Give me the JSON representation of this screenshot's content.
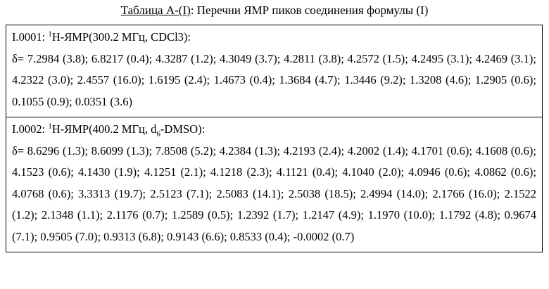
{
  "caption": {
    "label": "Таблица А-(I)",
    "text": ": Перечни ЯМР пиков соединения формулы (I)"
  },
  "rows": [
    {
      "id": "I.0001",
      "sep": ": ",
      "sup": "1",
      "nucleus": "H-ЯМР(300.2 МГц, CDCl3):",
      "shifts": "δ= 7.2984 (3.8); 6.8217 (0.4); 4.3287 (1.2); 4.3049 (3.7); 4.2811 (3.8); 4.2572 (1.5); 4.2495 (3.1); 4.2469 (3.1); 4.2322 (3.0); 2.4557 (16.0); 1.6195 (2.4); 1.4673 (0.4); 1.3684 (4.7); 1.3446 (9.2); 1.3208 (4.6); 1.2905 (0.6); 0.1055 (0.9); 0.0351 (3.6)"
    },
    {
      "id": "I.0002",
      "sep": ": ",
      "sup": "1",
      "nucleus_a": "H-ЯМР(400.2 МГц, d",
      "sub": "6",
      "nucleus_b": "-DMSO):",
      "shifts": "δ= 8.6296 (1.3); 8.6099 (1.3); 7.8508 (5.2); 4.2384 (1.3); 4.2193 (2.4); 4.2002 (1.4); 4.1701 (0.6); 4.1608 (0.6); 4.1523 (0.6); 4.1430 (1.9); 4.1251 (2.1); 4.1218 (2.3); 4.1121 (0.4); 4.1040 (2.0); 4.0946 (0.6); 4.0862 (0.6); 4.0768 (0.6); 3.3313 (19.7); 2.5123 (7.1); 2.5083 (14.1); 2.5038 (18.5); 2.4994 (14.0); 2.1766 (16.0); 2.1522 (1.2); 2.1348 (1.1); 2.1176 (0.7); 1.2589 (0.5); 1.2392 (1.7); 1.2147 (4.9); 1.1970 (10.0); 1.1792 (4.8); 0.9674 (7.1); 0.9505 (7.0); 0.9313 (6.8); 0.9143 (6.6); 0.8533 (0.4); -0.0002 (0.7)"
    }
  ]
}
